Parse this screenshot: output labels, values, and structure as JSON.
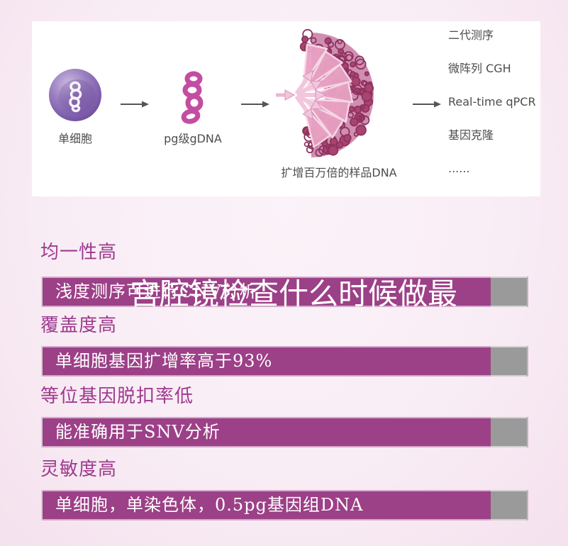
{
  "diagram": {
    "cell_label": "单细胞",
    "gdna_label": "pg级gDNA",
    "amplified_label": "扩增百万倍的样品DNA",
    "applications": [
      "二代测序",
      "微阵列 CGH",
      "Real-time qPCR",
      "基因克隆",
      "......"
    ]
  },
  "watermark_text": "宫腔镜检查什么时候做最",
  "features": [
    {
      "heading": "均一性高",
      "bar": "浅度测序可进行CNV分析"
    },
    {
      "heading": "覆盖度高",
      "bar": "单细胞基因扩增率高于93%"
    },
    {
      "heading": "等位基因脱扣率低",
      "bar": "能准确用于SNV分析"
    },
    {
      "heading": "灵敏度高",
      "bar": "单细胞，单染色体，0.5pg基因组DNA"
    }
  ],
  "colors": {
    "page_background": "#f9edf5",
    "panel_background": "#ffffff",
    "bar_purple": "#9c4087",
    "bar_gray": "#9a9a9a",
    "heading_text": "#9d3a8e",
    "bar_text": "#ffffff",
    "watermark_text_color": "#ffffff",
    "diagram_text": "#4d4d4d",
    "cell_purple": "#8468ae",
    "dna_magenta": "#c34da1",
    "fan_dark_pink": "#8d3260",
    "fan_light_pink": "#f2c6dc"
  }
}
